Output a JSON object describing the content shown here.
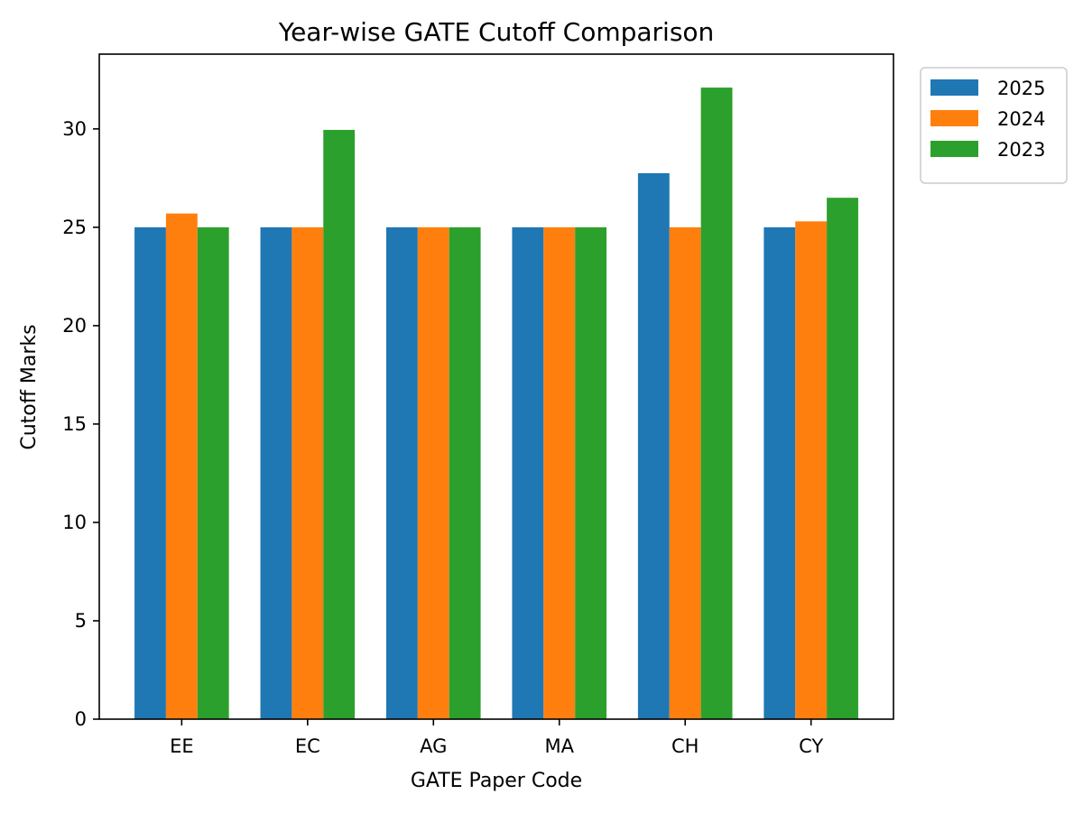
{
  "chart_data": {
    "type": "bar",
    "title": "Year-wise GATE Cutoff Comparison",
    "xlabel": "GATE Paper Code",
    "ylabel": "Cutoff Marks",
    "categories": [
      "EE",
      "EC",
      "AG",
      "MA",
      "CH",
      "CY"
    ],
    "series": [
      {
        "name": "2025",
        "color": "#1f77b4",
        "values": [
          25,
          25,
          25,
          25,
          27.75,
          25
        ]
      },
      {
        "name": "2024",
        "color": "#ff7f0e",
        "values": [
          25.7,
          25,
          25,
          25,
          25,
          25.3
        ]
      },
      {
        "name": "2023",
        "color": "#2ca02c",
        "values": [
          25,
          29.95,
          25,
          25,
          32.1,
          26.5
        ]
      }
    ],
    "yticks": [
      "0",
      "5",
      "10",
      "15",
      "20",
      "25",
      "30"
    ],
    "ylim": [
      0,
      33.8
    ],
    "grid": false,
    "legend": "outside-top-right"
  }
}
